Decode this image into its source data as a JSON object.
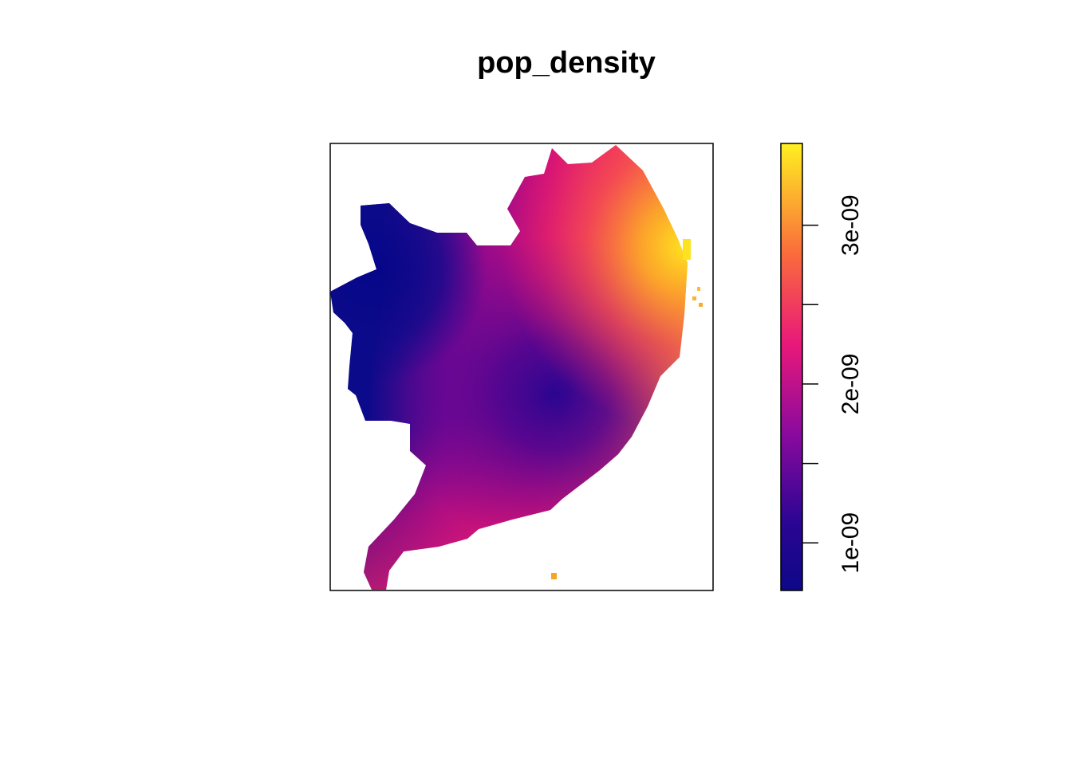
{
  "title": "pop_density",
  "legend": {
    "tick_labels": [
      "1e-09",
      "2e-09",
      "3e-09"
    ],
    "tick_values": [
      1e-09,
      1.5e-09,
      2e-09,
      2.5e-09,
      3e-09
    ],
    "range": [
      7e-10,
      3.5e-09
    ],
    "palette": [
      "#0d0887",
      "#7e03a8",
      "#cc4778",
      "#f0567a",
      "#f89540",
      "#fdea21"
    ],
    "position": "right"
  },
  "map": {
    "variable": "pop_density",
    "axes_shown": false,
    "box": true,
    "low_value_area": "northwest",
    "secondary_low_center": "center",
    "high_value_area": "northeast"
  }
}
